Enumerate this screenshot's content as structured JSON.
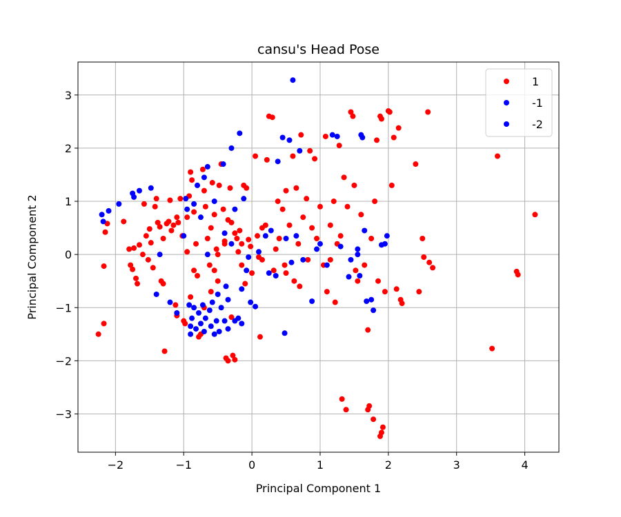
{
  "chart_data": {
    "type": "scatter",
    "title": "cansu's Head Pose",
    "xlabel": "Principal Component 1",
    "ylabel": "Principal Component 2",
    "xlim": [
      -2.55,
      4.5
    ],
    "ylim": [
      -3.72,
      3.62
    ],
    "xticks": [
      -2,
      -1,
      0,
      1,
      2,
      3,
      4
    ],
    "yticks": [
      -3,
      -2,
      -1,
      0,
      1,
      2,
      3
    ],
    "xtick_labels": [
      "−2",
      "−1",
      "0",
      "1",
      "2",
      "3",
      "4"
    ],
    "ytick_labels": [
      "−3",
      "−2",
      "−1",
      "0",
      "1",
      "2",
      "3"
    ],
    "grid": true,
    "legend_position": "top-right",
    "series": [
      {
        "name": "1",
        "color": "#ff0000",
        "points": [
          [
            -2.25,
            -1.5
          ],
          [
            -2.17,
            -1.3
          ],
          [
            -2.17,
            -0.22
          ],
          [
            -2.15,
            0.42
          ],
          [
            -2.12,
            0.58
          ],
          [
            -1.88,
            0.62
          ],
          [
            -1.8,
            0.1
          ],
          [
            -1.78,
            -0.2
          ],
          [
            -1.75,
            -0.28
          ],
          [
            -1.73,
            0.12
          ],
          [
            -1.7,
            -0.45
          ],
          [
            -1.68,
            -0.55
          ],
          [
            -1.65,
            0.18
          ],
          [
            -1.6,
            0.0
          ],
          [
            -1.58,
            0.95
          ],
          [
            -1.55,
            0.35
          ],
          [
            -1.52,
            -0.1
          ],
          [
            -1.5,
            0.48
          ],
          [
            -1.48,
            0.22
          ],
          [
            -1.45,
            -0.25
          ],
          [
            -1.42,
            0.9
          ],
          [
            -1.4,
            1.05
          ],
          [
            -1.38,
            0.6
          ],
          [
            -1.35,
            0.52
          ],
          [
            -1.33,
            -0.5
          ],
          [
            -1.3,
            -0.55
          ],
          [
            -1.28,
            -1.82
          ],
          [
            -1.25,
            0.58
          ],
          [
            -1.22,
            0.62
          ],
          [
            -1.2,
            1.02
          ],
          [
            -1.18,
            0.45
          ],
          [
            -1.15,
            0.55
          ],
          [
            -1.12,
            -0.95
          ],
          [
            -1.1,
            -1.15
          ],
          [
            -1.08,
            0.6
          ],
          [
            -1.05,
            1.05
          ],
          [
            -1.02,
            0.35
          ],
          [
            -1.0,
            -1.25
          ],
          [
            -0.98,
            -1.3
          ],
          [
            -0.95,
            0.7
          ],
          [
            -0.92,
            1.1
          ],
          [
            -0.9,
            1.55
          ],
          [
            -0.88,
            1.4
          ],
          [
            -0.85,
            0.8
          ],
          [
            -0.82,
            0.2
          ],
          [
            -0.8,
            -0.4
          ],
          [
            -0.78,
            -1.55
          ],
          [
            -0.75,
            -1.5
          ],
          [
            -0.72,
            1.6
          ],
          [
            -0.7,
            1.2
          ],
          [
            -0.68,
            0.9
          ],
          [
            -0.65,
            0.3
          ],
          [
            -0.62,
            -0.2
          ],
          [
            -0.6,
            -0.7
          ],
          [
            -0.58,
            1.35
          ],
          [
            -0.55,
            0.75
          ],
          [
            -0.52,
            0.1
          ],
          [
            -0.5,
            -0.5
          ],
          [
            -0.48,
            1.3
          ],
          [
            -0.45,
            1.7
          ],
          [
            -0.42,
            0.85
          ],
          [
            -0.4,
            0.2
          ],
          [
            -0.38,
            -1.95
          ],
          [
            -0.35,
            -2.0
          ],
          [
            -0.32,
            1.25
          ],
          [
            -0.3,
            0.6
          ],
          [
            -0.28,
            -1.9
          ],
          [
            -0.25,
            -1.98
          ],
          [
            -0.22,
            0.3
          ],
          [
            -0.2,
            0.05
          ],
          [
            -0.18,
            0.45
          ],
          [
            -0.15,
            -0.2
          ],
          [
            -0.12,
            1.3
          ],
          [
            -0.1,
            -0.55
          ],
          [
            -0.08,
            1.25
          ],
          [
            -0.05,
            0.28
          ],
          [
            -0.02,
            0.15
          ],
          [
            0.0,
            -0.35
          ],
          [
            0.05,
            1.85
          ],
          [
            0.08,
            0.35
          ],
          [
            0.12,
            -1.55
          ],
          [
            0.15,
            -0.1
          ],
          [
            0.2,
            0.55
          ],
          [
            0.22,
            1.78
          ],
          [
            0.25,
            2.6
          ],
          [
            0.3,
            2.58
          ],
          [
            0.32,
            -0.3
          ],
          [
            0.35,
            0.1
          ],
          [
            0.38,
            1.0
          ],
          [
            0.4,
            0.3
          ],
          [
            0.45,
            0.85
          ],
          [
            0.48,
            -0.2
          ],
          [
            0.5,
            1.2
          ],
          [
            0.55,
            0.55
          ],
          [
            0.6,
            1.85
          ],
          [
            0.62,
            -0.5
          ],
          [
            0.65,
            1.25
          ],
          [
            0.68,
            0.2
          ],
          [
            0.72,
            2.25
          ],
          [
            0.75,
            0.7
          ],
          [
            0.8,
            1.05
          ],
          [
            0.82,
            -0.1
          ],
          [
            0.85,
            1.95
          ],
          [
            0.88,
            0.5
          ],
          [
            0.92,
            1.8
          ],
          [
            0.95,
            0.3
          ],
          [
            1.0,
            0.9
          ],
          [
            1.05,
            -0.2
          ],
          [
            1.08,
            2.22
          ],
          [
            1.1,
            -0.7
          ],
          [
            1.15,
            0.55
          ],
          [
            1.2,
            1.0
          ],
          [
            1.22,
            -0.9
          ],
          [
            1.25,
            0.2
          ],
          [
            1.28,
            2.05
          ],
          [
            1.32,
            -2.72
          ],
          [
            1.35,
            1.45
          ],
          [
            1.38,
            -2.92
          ],
          [
            1.4,
            0.9
          ],
          [
            1.45,
            2.68
          ],
          [
            1.48,
            2.6
          ],
          [
            1.5,
            1.3
          ],
          [
            1.52,
            -0.3
          ],
          [
            1.55,
            -0.5
          ],
          [
            1.6,
            0.75
          ],
          [
            1.65,
            -0.2
          ],
          [
            1.7,
            -2.92
          ],
          [
            1.72,
            -2.85
          ],
          [
            1.75,
            0.3
          ],
          [
            1.78,
            -3.1
          ],
          [
            1.8,
            1.0
          ],
          [
            1.83,
            2.15
          ],
          [
            1.85,
            -0.5
          ],
          [
            1.88,
            2.6
          ],
          [
            1.9,
            2.55
          ],
          [
            1.92,
            -3.25
          ],
          [
            1.88,
            -3.42
          ],
          [
            1.9,
            -3.35
          ],
          [
            1.95,
            -0.7
          ],
          [
            2.0,
            2.7
          ],
          [
            2.02,
            2.68
          ],
          [
            2.05,
            1.3
          ],
          [
            2.08,
            2.2
          ],
          [
            2.12,
            -0.65
          ],
          [
            2.15,
            2.38
          ],
          [
            2.18,
            -0.85
          ],
          [
            2.2,
            -0.92
          ],
          [
            2.4,
            1.7
          ],
          [
            2.45,
            -0.7
          ],
          [
            2.5,
            0.3
          ],
          [
            2.52,
            -0.05
          ],
          [
            2.58,
            2.68
          ],
          [
            2.6,
            -0.15
          ],
          [
            2.65,
            -0.25
          ],
          [
            3.52,
            -1.77
          ],
          [
            3.6,
            1.85
          ],
          [
            3.88,
            -0.32
          ],
          [
            3.9,
            -0.38
          ],
          [
            4.15,
            0.75
          ],
          [
            1.7,
            -1.42
          ],
          [
            -0.3,
            -1.18
          ],
          [
            -0.9,
            -0.8
          ],
          [
            -0.7,
            -1.0
          ],
          [
            -0.6,
            0.5
          ],
          [
            -0.4,
            0.25
          ],
          [
            -0.35,
            0.65
          ],
          [
            -0.25,
            0.4
          ],
          [
            -0.15,
            0.2
          ],
          [
            -0.95,
            0.05
          ],
          [
            -0.85,
            -0.3
          ],
          [
            -0.55,
            -0.3
          ],
          [
            -0.5,
            0.0
          ],
          [
            -1.1,
            0.7
          ],
          [
            -1.3,
            0.3
          ],
          [
            0.1,
            -0.05
          ],
          [
            0.15,
            0.5
          ],
          [
            0.5,
            -0.35
          ],
          [
            0.7,
            -0.6
          ],
          [
            1.15,
            -0.1
          ],
          [
            1.3,
            0.35
          ]
        ]
      },
      {
        "name": "-1",
        "color": "#0000ff",
        "points": [
          [
            -2.2,
            0.75
          ],
          [
            -2.18,
            0.62
          ],
          [
            -2.1,
            0.82
          ],
          [
            -1.95,
            0.95
          ],
          [
            -1.75,
            1.15
          ],
          [
            -1.73,
            1.08
          ],
          [
            -1.65,
            1.2
          ],
          [
            -1.48,
            1.25
          ],
          [
            -1.4,
            -0.75
          ],
          [
            -1.35,
            0.0
          ],
          [
            -1.2,
            -0.9
          ],
          [
            -1.1,
            -1.1
          ],
          [
            -1.0,
            0.35
          ],
          [
            -0.97,
            1.05
          ],
          [
            -0.95,
            0.85
          ],
          [
            -0.92,
            -0.95
          ],
          [
            -0.9,
            -1.35
          ],
          [
            -0.88,
            -1.2
          ],
          [
            -0.85,
            -1.0
          ],
          [
            -0.82,
            -1.4
          ],
          [
            -0.8,
            1.3
          ],
          [
            -0.78,
            -1.1
          ],
          [
            -0.75,
            -1.3
          ],
          [
            -0.72,
            -0.95
          ],
          [
            -0.7,
            1.45
          ],
          [
            -0.68,
            -1.2
          ],
          [
            -0.65,
            1.65
          ],
          [
            -0.62,
            -1.05
          ],
          [
            -0.6,
            -1.35
          ],
          [
            -0.58,
            -0.9
          ],
          [
            -0.55,
            1.0
          ],
          [
            -0.52,
            -1.25
          ],
          [
            -0.5,
            -0.75
          ],
          [
            -0.48,
            -1.45
          ],
          [
            -0.45,
            -1.0
          ],
          [
            -0.42,
            1.7
          ],
          [
            -0.4,
            -1.25
          ],
          [
            -0.38,
            -0.6
          ],
          [
            -0.35,
            -0.85
          ],
          [
            -0.3,
            2.0
          ],
          [
            -0.25,
            0.85
          ],
          [
            -0.2,
            -1.2
          ],
          [
            -0.18,
            2.28
          ],
          [
            -0.15,
            -0.65
          ],
          [
            -0.12,
            1.05
          ],
          [
            -0.08,
            -0.3
          ],
          [
            -0.05,
            -0.05
          ],
          [
            -0.02,
            -0.9
          ],
          [
            0.05,
            -0.98
          ],
          [
            0.1,
            0.05
          ],
          [
            0.2,
            0.35
          ],
          [
            0.25,
            -0.35
          ],
          [
            0.35,
            -0.4
          ],
          [
            0.38,
            1.75
          ],
          [
            0.45,
            2.2
          ],
          [
            0.48,
            -1.48
          ],
          [
            0.5,
            0.3
          ],
          [
            0.55,
            2.15
          ],
          [
            0.58,
            -0.15
          ],
          [
            0.6,
            3.28
          ],
          [
            0.65,
            0.35
          ],
          [
            0.7,
            1.95
          ],
          [
            0.75,
            -0.1
          ],
          [
            0.88,
            -0.88
          ],
          [
            0.95,
            0.1
          ],
          [
            1.0,
            0.2
          ],
          [
            1.1,
            -0.2
          ],
          [
            1.18,
            2.25
          ],
          [
            1.25,
            2.22
          ],
          [
            1.3,
            0.15
          ],
          [
            1.42,
            -0.42
          ],
          [
            1.45,
            -0.1
          ],
          [
            1.55,
            0.1
          ],
          [
            1.58,
            -0.4
          ],
          [
            1.6,
            2.25
          ],
          [
            1.62,
            2.2
          ],
          [
            1.65,
            0.45
          ],
          [
            1.68,
            -0.88
          ],
          [
            1.75,
            -0.85
          ],
          [
            1.78,
            -1.05
          ],
          [
            1.9,
            0.18
          ],
          [
            1.95,
            0.2
          ],
          [
            1.98,
            0.35
          ],
          [
            1.55,
            0.0
          ],
          [
            -0.85,
            0.95
          ],
          [
            -0.75,
            0.7
          ],
          [
            -0.65,
            0.0
          ],
          [
            -0.4,
            0.4
          ],
          [
            -0.3,
            0.2
          ],
          [
            0.28,
            0.45
          ],
          [
            -0.9,
            -1.5
          ],
          [
            -0.7,
            -1.45
          ],
          [
            -0.55,
            -1.5
          ],
          [
            -0.35,
            -1.4
          ],
          [
            -0.25,
            -1.25
          ],
          [
            -0.15,
            -1.3
          ]
        ]
      },
      {
        "name": "-2",
        "color": "#0000ff",
        "points": []
      }
    ]
  }
}
